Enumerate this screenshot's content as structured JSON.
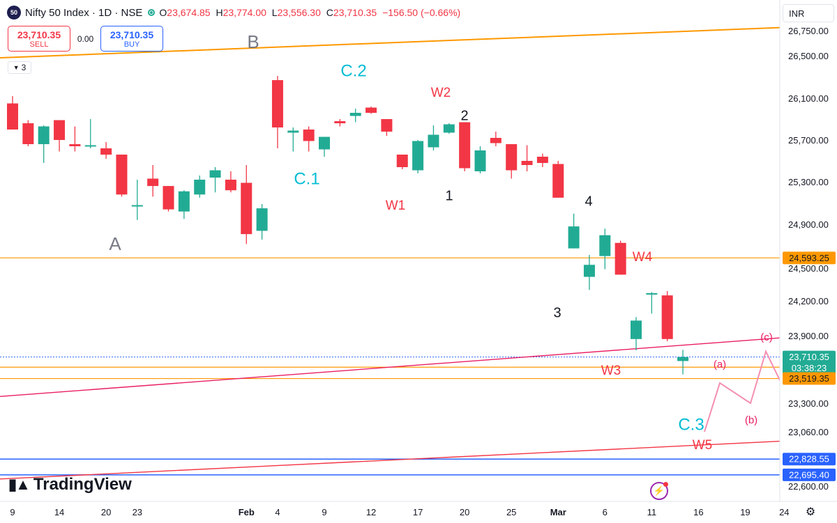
{
  "header": {
    "symbol_badge": "50",
    "title": "Nifty 50 Index · 1D · NSE",
    "open_label": "O",
    "open": "23,674.85",
    "high_label": "H",
    "high": "23,774.00",
    "low_label": "L",
    "low": "23,556.30",
    "close_label": "C",
    "close": "23,710.35",
    "change": "−156.50 (−0.66%)"
  },
  "trade": {
    "sell_price": "23,710.35",
    "sell_label": "SELL",
    "spread": "0.00",
    "buy_price": "23,710.35",
    "buy_label": "BUY"
  },
  "indicator_count": "3",
  "currency": "INR",
  "branding": "TradingView",
  "colors": {
    "up": "#22ab94",
    "down": "#f23645",
    "wave_red": "#f23645",
    "wave_cyan": "#00bcd4",
    "wave_gray": "#787b86",
    "orange": "#ff9800",
    "pink": "#e91e63",
    "blue": "#2962ff"
  },
  "chart_data": {
    "type": "candlestick",
    "y_axis_ticks": [
      "26,750.00",
      "26,500.00",
      "26,100.00",
      "25,700.00",
      "25,300.00",
      "24,900.00",
      "24,500.00",
      "24,200.00",
      "23,900.00",
      "23,300.00",
      "23,060.00",
      "22,600.00"
    ],
    "price_tags": [
      {
        "value": "24,593.25",
        "style": "orange"
      },
      {
        "value": "23,710.35",
        "style": "blue",
        "timer": "03:38:23"
      },
      {
        "value": "23,519.35",
        "style": "orange"
      },
      {
        "value": "22,828.55",
        "style": "blue"
      },
      {
        "value": "22,695.40",
        "style": "blue"
      }
    ],
    "x_axis_ticks": [
      "9",
      "14",
      "20",
      "23",
      "Feb",
      "4",
      "9",
      "12",
      "17",
      "20",
      "25",
      "Mar",
      "6",
      "11",
      "16",
      "19",
      "24"
    ],
    "candles": [
      {
        "o": 26050,
        "h": 26120,
        "l": 25800,
        "c": 25800
      },
      {
        "o": 25860,
        "h": 25890,
        "l": 25640,
        "c": 25660
      },
      {
        "o": 25660,
        "h": 25840,
        "l": 25480,
        "c": 25830
      },
      {
        "o": 25890,
        "h": 25890,
        "l": 25590,
        "c": 25700
      },
      {
        "o": 25660,
        "h": 25830,
        "l": 25590,
        "c": 25640
      },
      {
        "o": 25640,
        "h": 25900,
        "l": 25620,
        "c": 25650
      },
      {
        "o": 25620,
        "h": 25680,
        "l": 25520,
        "c": 25560
      },
      {
        "o": 25560,
        "h": 25560,
        "l": 25160,
        "c": 25180
      },
      {
        "o": 25080,
        "h": 25320,
        "l": 24940,
        "c": 25080
      },
      {
        "o": 25330,
        "h": 25460,
        "l": 25160,
        "c": 25260
      },
      {
        "o": 25260,
        "h": 25260,
        "l": 25020,
        "c": 25040
      },
      {
        "o": 25020,
        "h": 25220,
        "l": 24950,
        "c": 25210
      },
      {
        "o": 25180,
        "h": 25360,
        "l": 25150,
        "c": 25320
      },
      {
        "o": 25340,
        "h": 25440,
        "l": 25200,
        "c": 25410
      },
      {
        "o": 25320,
        "h": 25400,
        "l": 25200,
        "c": 25220
      },
      {
        "o": 25290,
        "h": 25460,
        "l": 24720,
        "c": 24810
      },
      {
        "o": 24840,
        "h": 25090,
        "l": 24760,
        "c": 25050
      },
      {
        "o": 26270,
        "h": 26310,
        "l": 25620,
        "c": 25820
      },
      {
        "o": 25770,
        "h": 25820,
        "l": 25590,
        "c": 25790
      },
      {
        "o": 25800,
        "h": 25830,
        "l": 25590,
        "c": 25690
      },
      {
        "o": 25610,
        "h": 25730,
        "l": 25540,
        "c": 25730
      },
      {
        "o": 25880,
        "h": 25900,
        "l": 25830,
        "c": 25860
      },
      {
        "o": 25930,
        "h": 26000,
        "l": 25870,
        "c": 25960
      },
      {
        "o": 26010,
        "h": 26020,
        "l": 25950,
        "c": 25960
      },
      {
        "o": 25900,
        "h": 25900,
        "l": 25740,
        "c": 25780
      },
      {
        "o": 25560,
        "h": 25560,
        "l": 25420,
        "c": 25440
      },
      {
        "o": 25410,
        "h": 25700,
        "l": 25380,
        "c": 25690
      },
      {
        "o": 25630,
        "h": 25840,
        "l": 25600,
        "c": 25750
      },
      {
        "o": 25770,
        "h": 25860,
        "l": 25760,
        "c": 25850
      },
      {
        "o": 25870,
        "h": 25870,
        "l": 25400,
        "c": 25430
      },
      {
        "o": 25400,
        "h": 25640,
        "l": 25380,
        "c": 25600
      },
      {
        "o": 25720,
        "h": 25780,
        "l": 25640,
        "c": 25670
      },
      {
        "o": 25660,
        "h": 25660,
        "l": 25330,
        "c": 25410
      },
      {
        "o": 25500,
        "h": 25650,
        "l": 25400,
        "c": 25460
      },
      {
        "o": 25540,
        "h": 25570,
        "l": 25440,
        "c": 25480
      },
      {
        "o": 25470,
        "h": 25500,
        "l": 25150,
        "c": 25150
      },
      {
        "o": 24680,
        "h": 25000,
        "l": 24680,
        "c": 24880
      },
      {
        "o": 24420,
        "h": 24620,
        "l": 24300,
        "c": 24530
      },
      {
        "o": 24610,
        "h": 24860,
        "l": 24490,
        "c": 24800
      },
      {
        "o": 24730,
        "h": 24750,
        "l": 24440,
        "c": 24440
      },
      {
        "o": 23870,
        "h": 24060,
        "l": 23770,
        "c": 24030
      },
      {
        "o": 24270,
        "h": 24280,
        "l": 24090,
        "c": 24270
      },
      {
        "o": 24250,
        "h": 24290,
        "l": 23850,
        "c": 23870
      },
      {
        "o": 23674.85,
        "h": 23774,
        "l": 23556.3,
        "c": 23710.35
      }
    ],
    "wave_labels": [
      {
        "text": "A",
        "color": "gray"
      },
      {
        "text": "B",
        "color": "gray"
      },
      {
        "text": "C.1",
        "color": "cyan"
      },
      {
        "text": "C.2",
        "color": "cyan"
      },
      {
        "text": "C.3",
        "color": "cyan"
      },
      {
        "text": "W1",
        "color": "red"
      },
      {
        "text": "W2",
        "color": "red"
      },
      {
        "text": "W3",
        "color": "red"
      },
      {
        "text": "W4",
        "color": "red"
      },
      {
        "text": "W5",
        "color": "red"
      },
      {
        "text": "1",
        "color": "dark"
      },
      {
        "text": "2",
        "color": "dark"
      },
      {
        "text": "3",
        "color": "dark"
      },
      {
        "text": "4",
        "color": "dark"
      },
      {
        "text": "(a)",
        "color": "pink"
      },
      {
        "text": "(b)",
        "color": "pink"
      },
      {
        "text": "(c)",
        "color": "pink"
      }
    ],
    "projection_path": [
      [
        23060,
        0
      ],
      [
        23480,
        1
      ],
      [
        23300,
        2
      ],
      [
        23760,
        3
      ],
      [
        23480,
        4
      ]
    ],
    "horizontal_levels": [
      24593.25,
      23710.35,
      23620,
      23519.35,
      22828.55,
      22695.4
    ],
    "trendlines": [
      {
        "from": [
          26480,
          0
        ],
        "to": [
          26780,
          1
        ],
        "color": "orange"
      },
      {
        "from": [
          23360,
          0
        ],
        "to": [
          23880,
          1
        ],
        "color": "pink"
      },
      {
        "from": [
          22660,
          0
        ],
        "to": [
          22980,
          1
        ],
        "color": "red"
      }
    ]
  }
}
